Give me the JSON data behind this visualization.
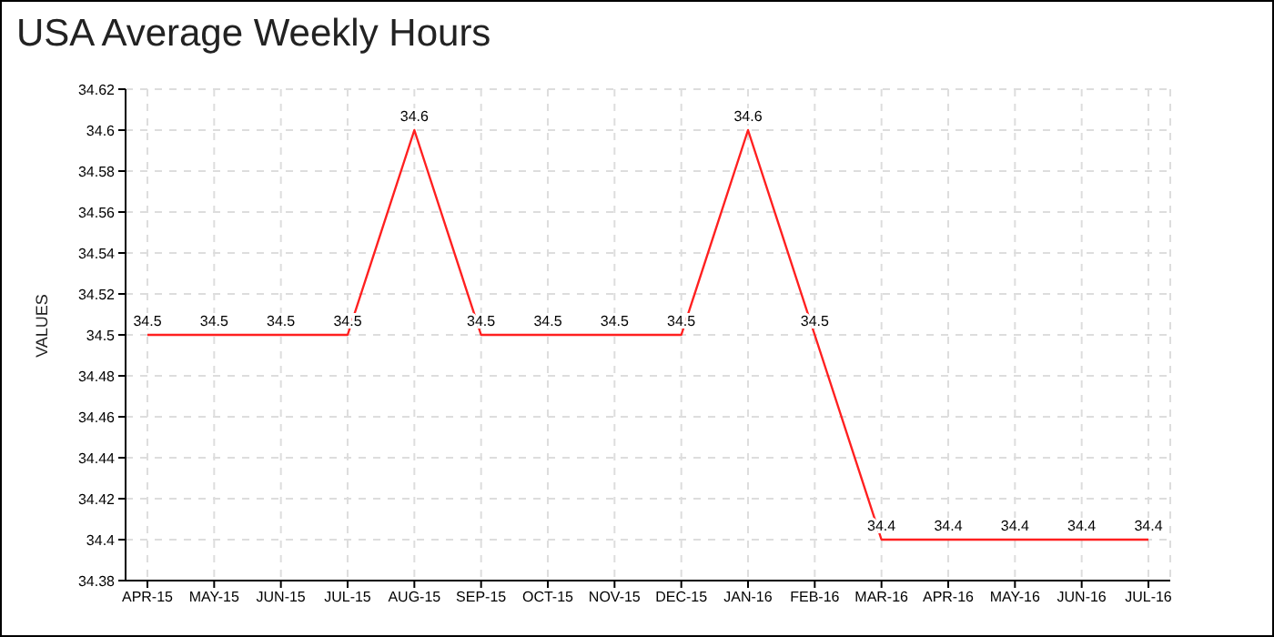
{
  "chart_data": {
    "type": "line",
    "title": "USA Average Weekly Hours",
    "ylabel": "VALUES",
    "categories": [
      "APR-15",
      "MAY-15",
      "JUN-15",
      "JUL-15",
      "AUG-15",
      "SEP-15",
      "OCT-15",
      "NOV-15",
      "DEC-15",
      "JAN-16",
      "FEB-16",
      "MAR-16",
      "APR-16",
      "MAY-16",
      "JUN-16",
      "JUL-16"
    ],
    "series": [
      {
        "color": "#ff2020",
        "values": [
          34.5,
          34.5,
          34.5,
          34.5,
          34.6,
          34.5,
          34.5,
          34.5,
          34.5,
          34.6,
          34.5,
          34.4,
          34.4,
          34.4,
          34.4,
          34.4
        ]
      }
    ],
    "ylim": [
      34.38,
      34.62
    ],
    "yticks": [
      34.38,
      34.4,
      34.42,
      34.44,
      34.46,
      34.48,
      34.5,
      34.52,
      34.54,
      34.56,
      34.58,
      34.6,
      34.62
    ],
    "grid": true,
    "data_labels": true,
    "marker": "none",
    "line_style": "solid",
    "legend": false
  }
}
